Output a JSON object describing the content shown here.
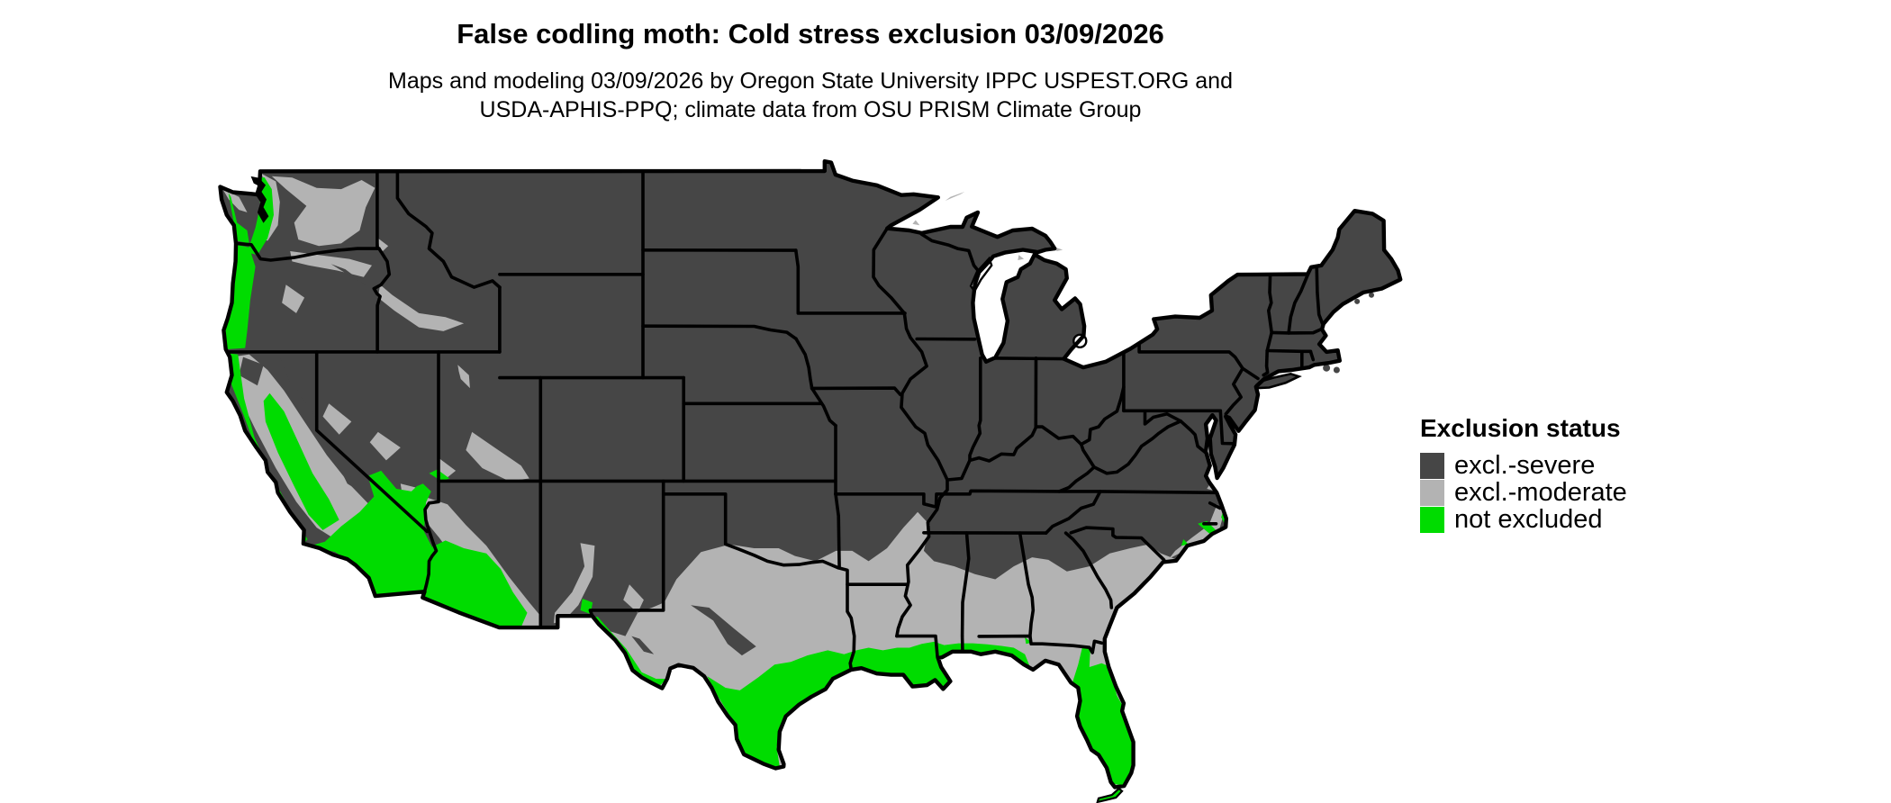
{
  "figure": {
    "title": "False codling moth: Cold stress exclusion 03/09/2026",
    "subtitle_lines": [
      "Maps and modeling 03/09/2026 by Oregon State University IPPC USPEST.ORG and",
      "USDA-APHIS-PPQ; climate data from OSU PRISM Climate Group"
    ]
  },
  "legend": {
    "title": "Exclusion status",
    "items": [
      {
        "label": "excl.-severe",
        "color": "#464646"
      },
      {
        "label": "excl.-moderate",
        "color": "#b3b3b3"
      },
      {
        "label": "not excluded",
        "color": "#00dc00"
      }
    ]
  },
  "map": {
    "colors": {
      "severe": "#464646",
      "moderate": "#b3b3b3",
      "not_excluded": "#00dc00",
      "border": "#000000",
      "water": "#ffffff"
    }
  }
}
